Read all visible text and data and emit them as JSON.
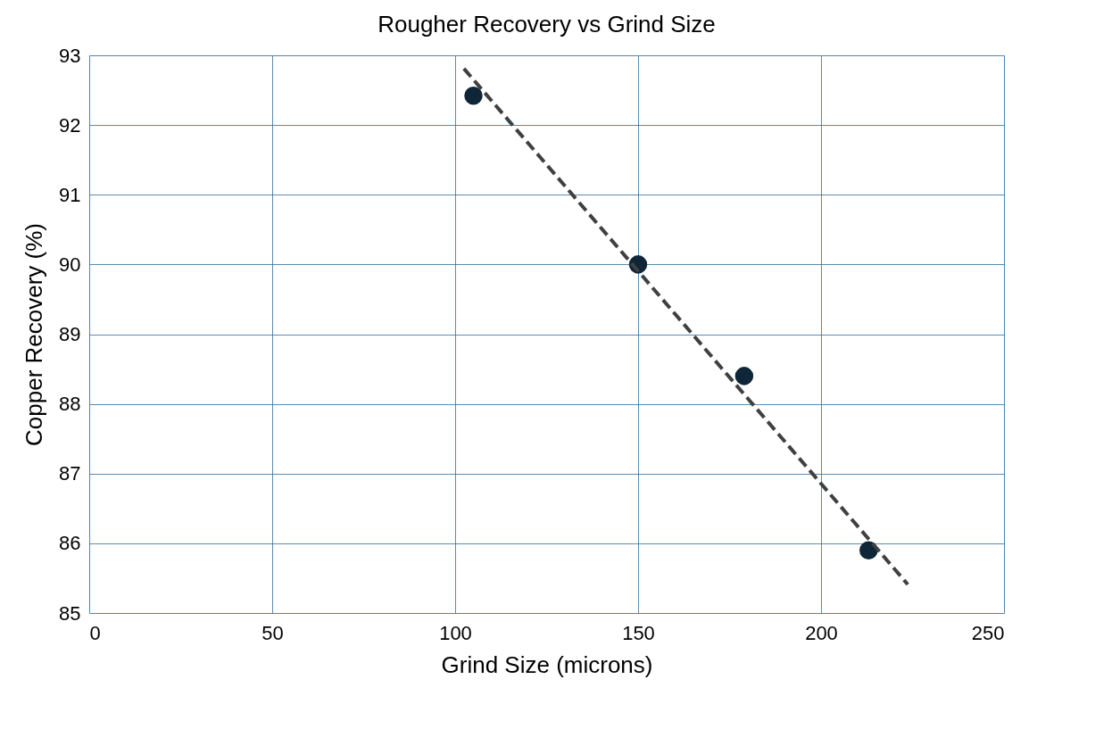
{
  "chart_data": {
    "type": "scatter",
    "title": "Rougher Recovery vs Grind Size",
    "xlabel": "Grind Size (microns)",
    "ylabel": "Copper Recovery (%)",
    "xlim": [
      0,
      250
    ],
    "xticks": [
      0,
      50,
      100,
      150,
      200,
      250
    ],
    "ylim": [
      85,
      93
    ],
    "yticks": [
      85,
      86,
      87,
      88,
      89,
      90,
      91,
      92,
      93
    ],
    "grid": true,
    "series": [
      {
        "color": "#0f2538",
        "marker": "circle",
        "x": [
          105,
          150,
          179,
          213
        ],
        "values": [
          92.42,
          90.0,
          88.4,
          85.9
        ]
      },
      {
        "type": "line",
        "color": "#404040",
        "line_style": "dashed",
        "x": [
          102.4,
          223.7
        ],
        "values": [
          92.81,
          85.41
        ]
      }
    ]
  }
}
